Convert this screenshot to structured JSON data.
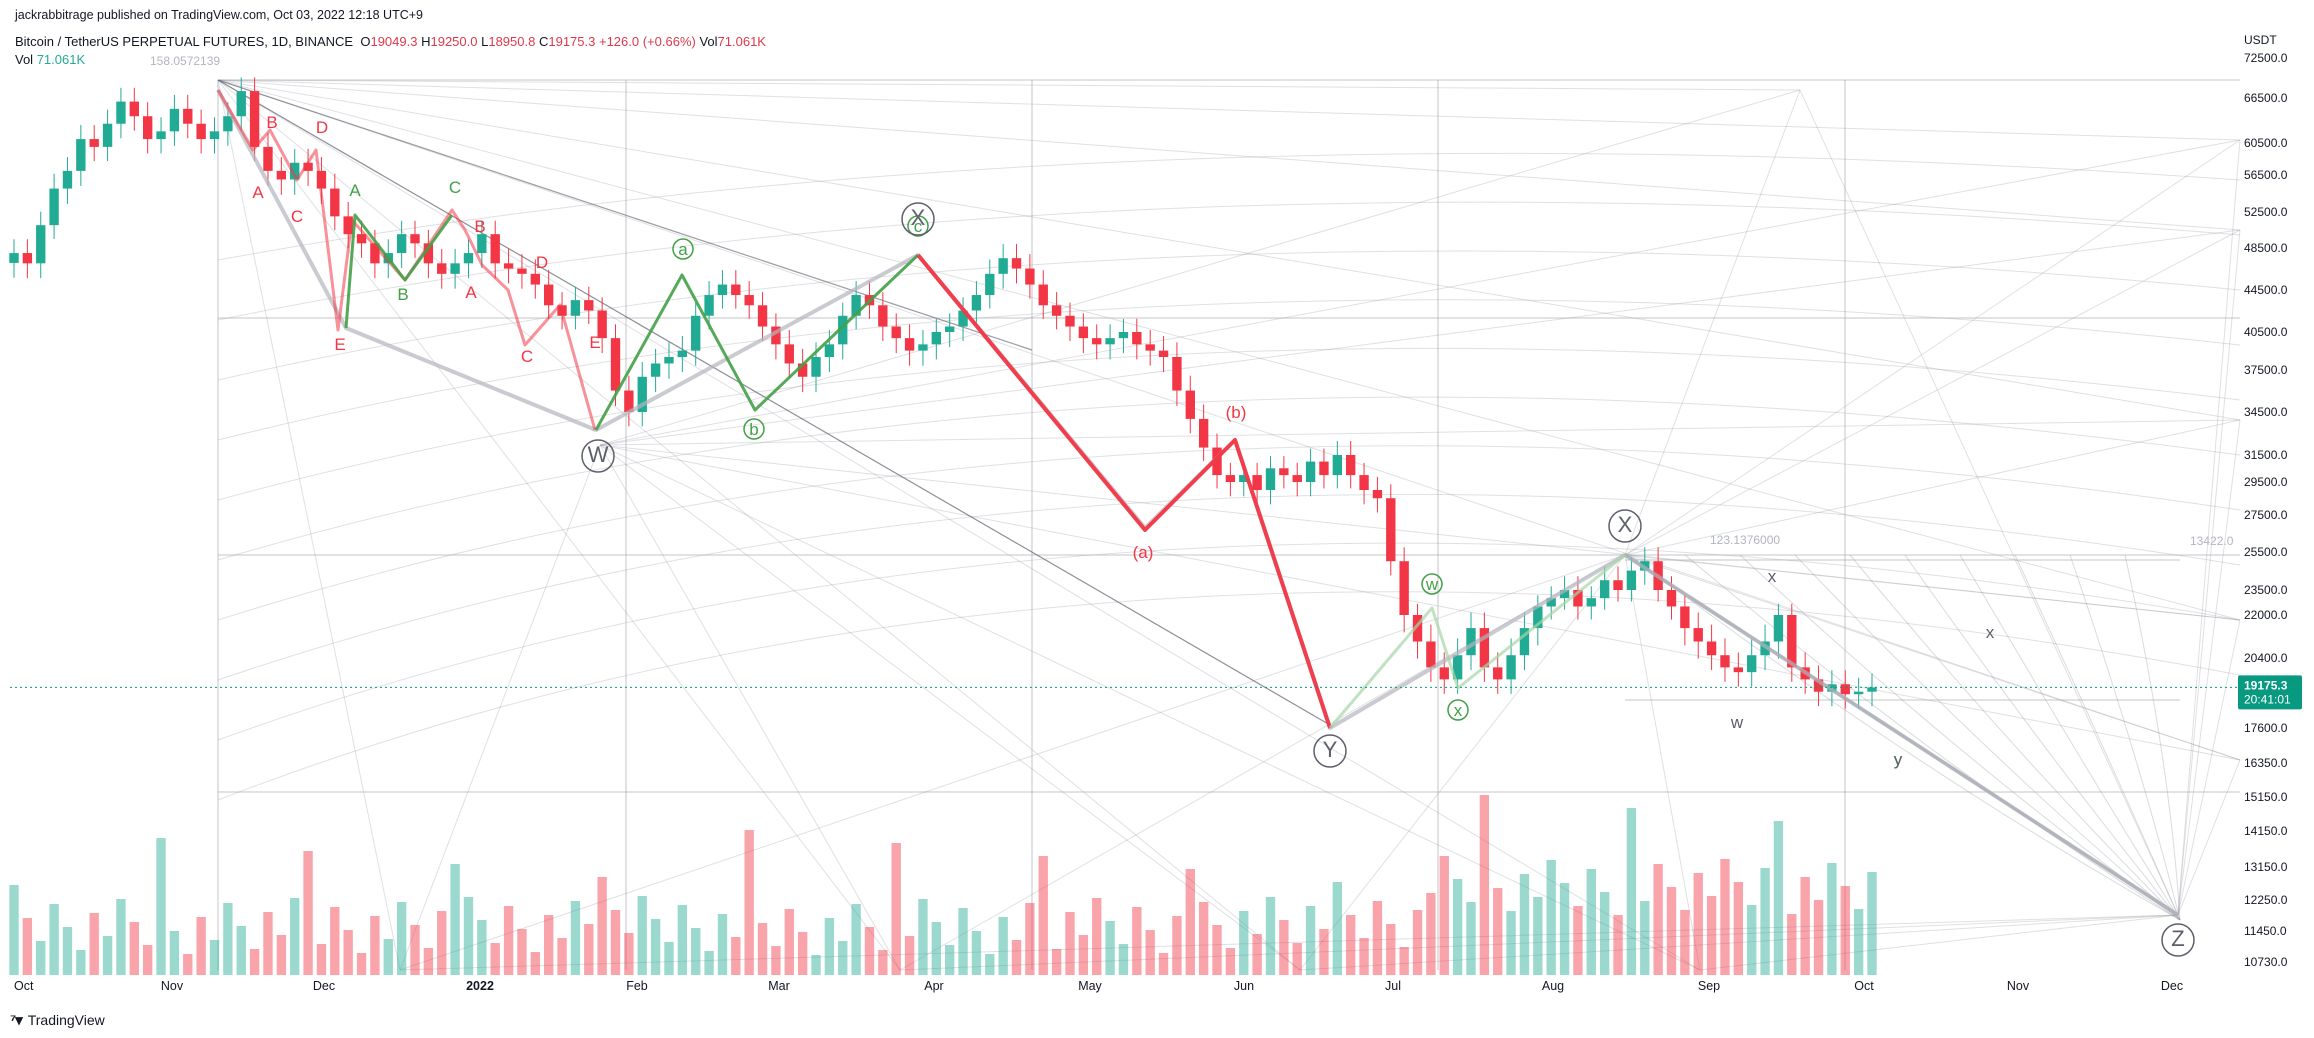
{
  "header": {
    "published": "jackrabbitrage published on TradingView.com, Oct 03, 2022 12:18 UTC+9"
  },
  "legend": {
    "symbol": "Bitcoin / TetherUS PERPETUAL FUTURES, 1D, BINANCE",
    "open_label": "O",
    "open": "19049.3",
    "high_label": "H",
    "high": "19250.0",
    "low_label": "L",
    "low": "18950.8",
    "close_label": "C",
    "close": "19175.3",
    "change": "+126.0 (+0.66%)",
    "vol_label": "Vol",
    "vol": "71.061K",
    "vol_row_label": "Vol",
    "vol_row_value": "71.061K"
  },
  "footer": {
    "brand": "TradingView"
  },
  "colors": {
    "up": "#22ab94",
    "down": "#f23645",
    "wave_red": "#f23645",
    "wave_green": "#43a047",
    "wave_grey": "#b2b5be",
    "price_tag": "#089981"
  },
  "chart_data": {
    "type": "candlestick",
    "currency": "USDT",
    "price_ticks": [
      "72500.0",
      "66500.0",
      "60500.0",
      "56500.0",
      "52500.0",
      "48500.0",
      "44500.0",
      "40500.0",
      "37500.0",
      "34500.0",
      "31500.0",
      "29500.0",
      "27500.0",
      "25500.0",
      "23500.0",
      "22000.0",
      "20400.0",
      "17600.0",
      "16350.0",
      "15150.0",
      "14150.0",
      "13150.0",
      "12250.0",
      "11450.0",
      "10730.0"
    ],
    "x_ticks": [
      "Oct",
      "Nov",
      "Dec",
      "2022",
      "Feb",
      "Mar",
      "Apr",
      "May",
      "Jun",
      "Jul",
      "Aug",
      "Sep",
      "Oct",
      "Nov",
      "Dec"
    ],
    "last_price": "19175.3",
    "countdown": "20:41:01",
    "fib_labels": [
      "158.0572139",
      "123.1376000",
      "13422.0"
    ],
    "path_ohlc_closes": [
      48000,
      47000,
      51000,
      55000,
      57000,
      61000,
      60000,
      63000,
      66000,
      64000,
      61000,
      62000,
      65000,
      63000,
      61000,
      62000,
      64000,
      67500,
      60000,
      57000,
      56000,
      58000,
      57000,
      55000,
      52000,
      50000,
      49000,
      47000,
      48000,
      50000,
      49000,
      47000,
      46000,
      47000,
      48000,
      50000,
      47000,
      46500,
      46000,
      45000,
      43000,
      42000,
      43500,
      42500,
      40000,
      36000,
      34500,
      37000,
      38000,
      38500,
      39000,
      42000,
      44000,
      45000,
      44000,
      43000,
      41000,
      39500,
      38000,
      37000,
      38500,
      39500,
      42000,
      44000,
      43000,
      41000,
      40000,
      39000,
      39500,
      40500,
      41000,
      42500,
      44000,
      46000,
      47500,
      46500,
      45000,
      43000,
      42000,
      41000,
      40000,
      39500,
      40000,
      40500,
      39500,
      39000,
      38500,
      36000,
      34000,
      32000,
      30000,
      29500,
      30000,
      29000,
      30500,
      30000,
      29500,
      31000,
      30000,
      31500,
      30000,
      29000,
      28500,
      25000,
      22000,
      21000,
      20000,
      19500,
      20500,
      21500,
      20000,
      19500,
      20500,
      21500,
      22500,
      23000,
      23500,
      22500,
      23000,
      24000,
      23500,
      24500,
      25000,
      23500,
      22500,
      21500,
      21000,
      20500,
      20000,
      19800,
      20500,
      21000,
      22000,
      20000,
      19500,
      19000,
      19300,
      18900,
      19000,
      19175
    ],
    "wave_labels": [
      {
        "text": "A",
        "color": "red"
      },
      {
        "text": "B",
        "color": "red"
      },
      {
        "text": "C",
        "color": "red"
      },
      {
        "text": "D",
        "color": "red"
      },
      {
        "text": "E",
        "color": "red"
      },
      {
        "text": "A",
        "color": "green"
      },
      {
        "text": "B",
        "color": "green"
      },
      {
        "text": "C",
        "color": "green"
      },
      {
        "text": "B",
        "color": "red"
      },
      {
        "text": "A",
        "color": "red"
      },
      {
        "text": "C",
        "color": "red"
      },
      {
        "text": "D",
        "color": "red"
      },
      {
        "text": "E",
        "color": "red"
      },
      {
        "text": "W",
        "color": "grey"
      },
      {
        "text": "a",
        "color": "green"
      },
      {
        "text": "b",
        "color": "green"
      },
      {
        "text": "c",
        "color": "green"
      },
      {
        "text": "X",
        "color": "grey"
      },
      {
        "text": "(a)",
        "color": "red"
      },
      {
        "text": "(b)",
        "color": "red"
      },
      {
        "text": "Y",
        "color": "grey"
      },
      {
        "text": "w",
        "color": "green"
      },
      {
        "text": "x",
        "color": "green"
      },
      {
        "text": "y",
        "color": "green"
      },
      {
        "text": "X",
        "color": "grey"
      },
      {
        "text": "w",
        "color": "grey"
      },
      {
        "text": "x",
        "color": "grey"
      },
      {
        "text": "x",
        "color": "grey"
      },
      {
        "text": "y",
        "color": "grey"
      },
      {
        "text": "Z",
        "color": "grey"
      }
    ]
  }
}
